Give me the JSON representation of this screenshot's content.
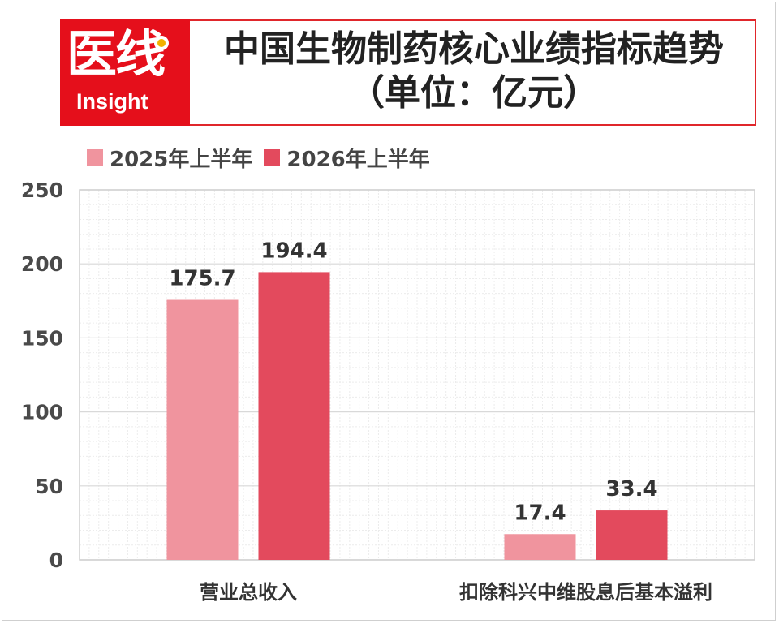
{
  "header": {
    "logo_cn": "医线",
    "logo_en": "Insight",
    "title_line1": "中国生物制药核心业绩指标趋势",
    "title_line2": "（单位：亿元）"
  },
  "colors": {
    "series_2025": "#f0949e",
    "series_2026": "#e34a5d",
    "brand": "#e50f1b",
    "grid": "#d9d9d9"
  },
  "chart_data": {
    "type": "bar",
    "title": "中国生物制药核心业绩指标趋势（单位：亿元）",
    "categories": [
      "营业总收入",
      "扣除科兴中维股息后基本溢利"
    ],
    "series": [
      {
        "name": "2025年上半年",
        "values": [
          175.7,
          17.4
        ],
        "labels": [
          "175.7",
          "17.4"
        ]
      },
      {
        "name": "2026年上半年",
        "values": [
          194.4,
          33.4
        ],
        "labels": [
          "194.4",
          "33.4"
        ]
      }
    ],
    "ylim": [
      0,
      250
    ],
    "yticks": [
      0,
      50,
      100,
      150,
      200,
      250
    ],
    "grid": true,
    "legend_position": "top-left"
  }
}
